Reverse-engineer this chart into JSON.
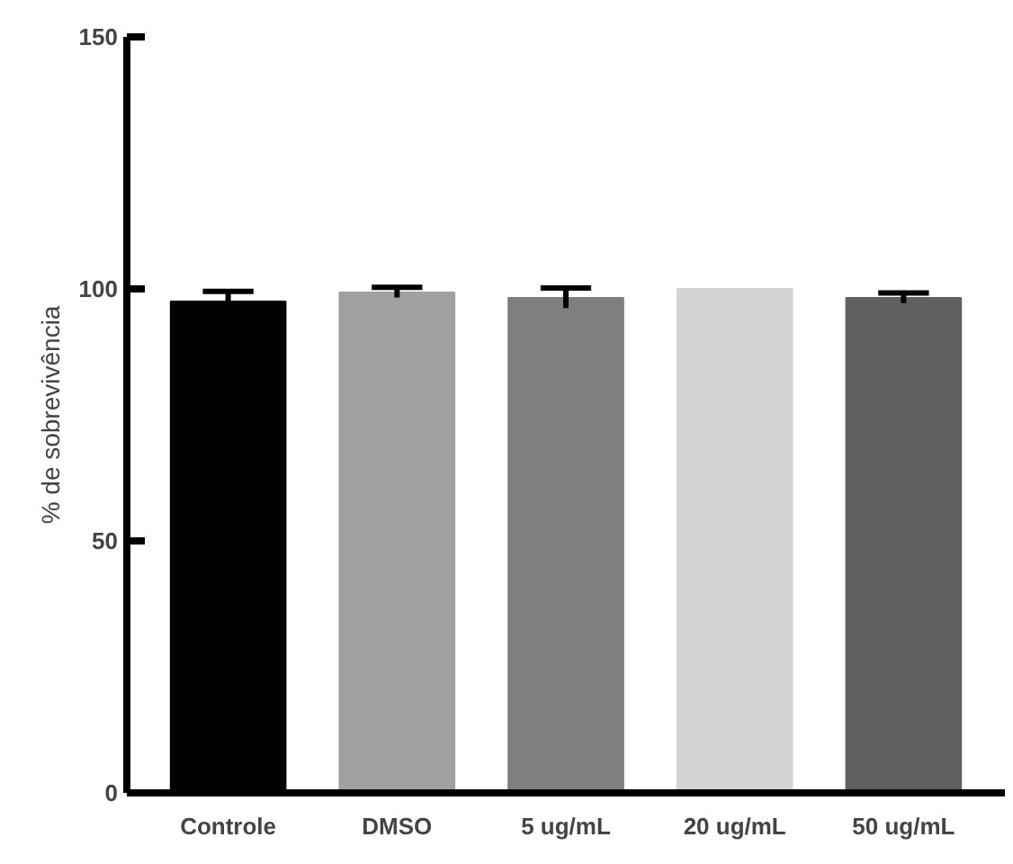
{
  "chart_data": {
    "type": "bar",
    "ylabel": "% de sobrevivência",
    "categories": [
      "Controle",
      "DMSO",
      "5 ug/mL",
      "20 ug/mL",
      "50 ug/mL"
    ],
    "values": [
      97.5,
      99.3,
      98.2,
      100,
      98.2
    ],
    "errors": [
      2,
      1,
      2,
      null,
      1
    ],
    "colors": [
      "#000000",
      "#a0a0a0",
      "#7f7f7f",
      "#d3d3d3",
      "#606060"
    ],
    "ylim": [
      0,
      150
    ],
    "yticks": [
      0,
      50,
      100,
      150
    ],
    "grid": false
  }
}
